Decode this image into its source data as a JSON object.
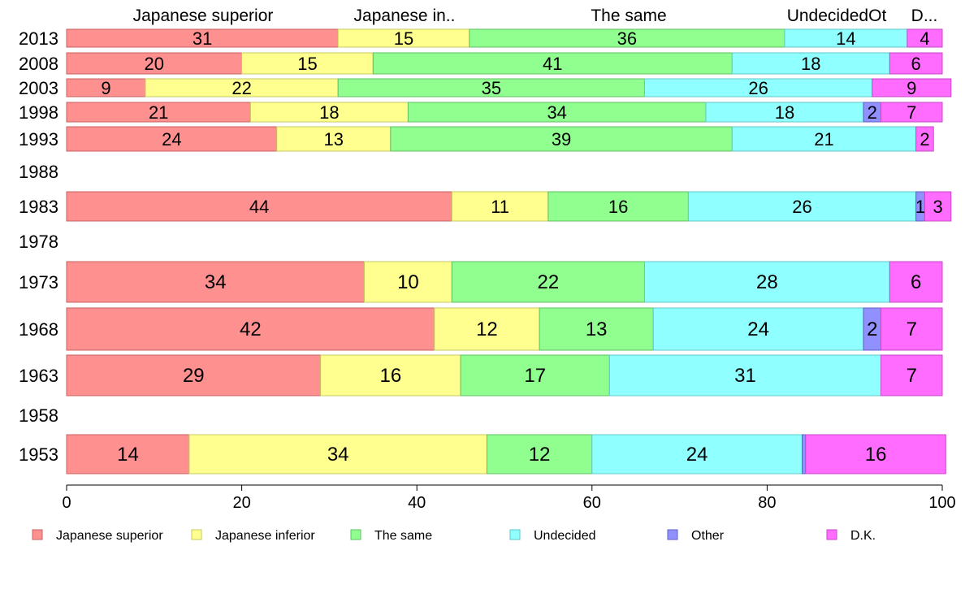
{
  "chart_data": {
    "type": "bar",
    "orientation": "horizontal",
    "stacked": true,
    "xlim": [
      0,
      100
    ],
    "x_ticks": [
      "0",
      "20",
      "40",
      "60",
      "80",
      "100"
    ],
    "grid": false,
    "legend_position": "bottom",
    "top_labels": [
      "Japanese superior",
      "Japanese in..",
      "The same",
      "UndecidedOt",
      "D..."
    ],
    "categories": [
      "2013",
      "2008",
      "2003",
      "1998",
      "1993",
      "1988",
      "1983",
      "1978",
      "1973",
      "1968",
      "1963",
      "1958",
      "1953"
    ],
    "series": [
      {
        "name": "Japanese superior",
        "color": "#ff9090",
        "values": [
          31,
          20,
          9,
          21,
          24,
          null,
          44,
          null,
          34,
          42,
          29,
          null,
          14
        ],
        "labels": [
          "31",
          "20",
          "9",
          "21",
          "24",
          "",
          "44",
          "",
          "34",
          "42",
          "29",
          "",
          "14"
        ]
      },
      {
        "name": "Japanese inferior",
        "color": "#ffff90",
        "values": [
          15,
          15,
          22,
          18,
          13,
          null,
          11,
          null,
          10,
          12,
          16,
          null,
          34
        ],
        "labels": [
          "15",
          "15",
          "22",
          "18",
          "13",
          "",
          "11",
          "",
          "10",
          "12",
          "16",
          "",
          "34"
        ]
      },
      {
        "name": "The same",
        "color": "#90ff90",
        "values": [
          36,
          41,
          35,
          34,
          39,
          null,
          16,
          null,
          22,
          13,
          17,
          null,
          12
        ],
        "labels": [
          "36",
          "41",
          "35",
          "34",
          "39",
          "",
          "16",
          "",
          "22",
          "13",
          "17",
          "",
          "12"
        ]
      },
      {
        "name": "Undecided",
        "color": "#90ffff",
        "values": [
          14,
          18,
          26,
          18,
          21,
          null,
          26,
          null,
          28,
          24,
          31,
          null,
          24
        ],
        "labels": [
          "14",
          "18",
          "26",
          "18",
          "21",
          "",
          "26",
          "",
          "28",
          "24",
          "31",
          "",
          "24"
        ]
      },
      {
        "name": "Other",
        "color": "#9090ff",
        "values": [
          0,
          0,
          0,
          2,
          0,
          null,
          1,
          null,
          0,
          2,
          0,
          null,
          0.4
        ],
        "labels": [
          "",
          "",
          "",
          "2",
          "",
          "",
          "1",
          "",
          "",
          "2",
          "",
          "",
          ""
        ]
      },
      {
        "name": "D.K.",
        "color": "#ff6cff",
        "values": [
          4,
          6,
          9,
          7,
          2,
          null,
          3,
          null,
          6,
          7,
          7,
          null,
          16
        ],
        "labels": [
          "4",
          "6",
          "9",
          "7",
          "2",
          "",
          "3",
          "",
          "6",
          "7",
          "7",
          "",
          "16"
        ]
      }
    ]
  }
}
